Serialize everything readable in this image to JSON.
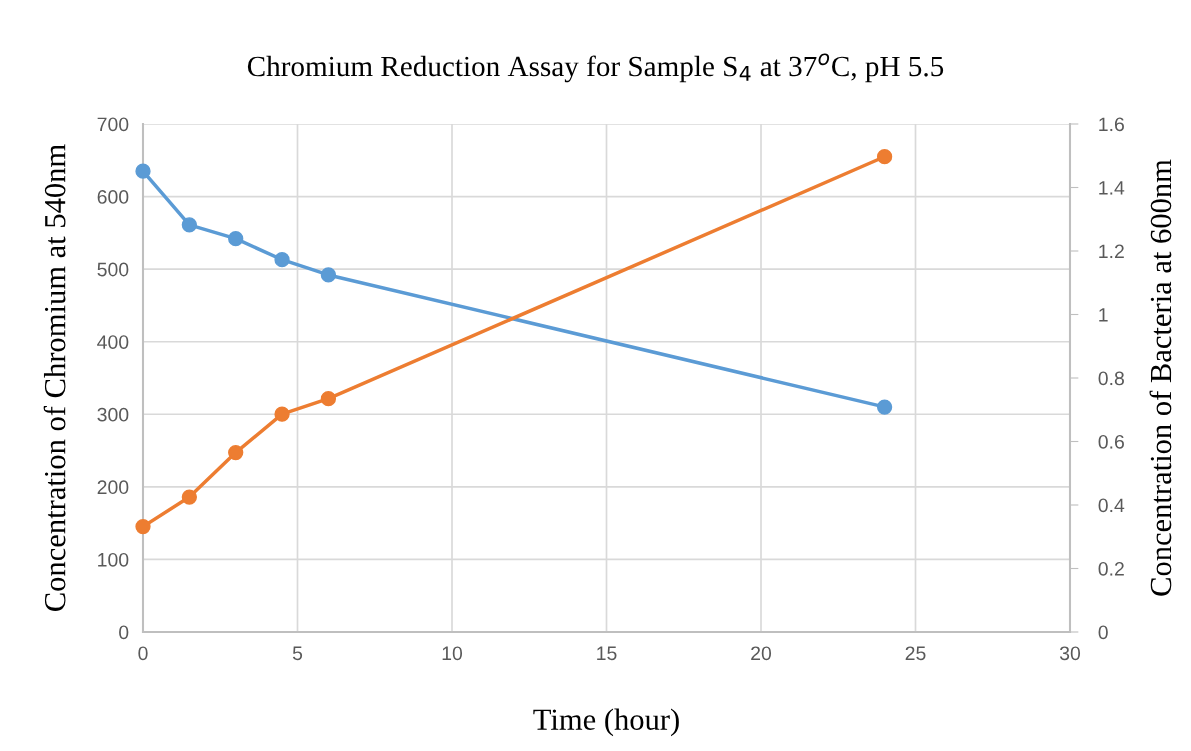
{
  "chart_data": {
    "type": "line",
    "title": "Chromium Reduction Assay for Sample S$_{4}$ at 37$^{o}$C, pH 5.5",
    "xlabel": "Time (hour)",
    "ylabel": "Concentration of Chromium at 540nm",
    "y2label": "Concentration of Bacteria at 600nm",
    "x": [
      0,
      1.5,
      3,
      4.5,
      6,
      24
    ],
    "series": [
      {
        "color": "#5b9bd5",
        "values": [
          635,
          561,
          542,
          513,
          492,
          310
        ]
      },
      {
        "color": "#ed7d31",
        "axis": "y2",
        "values": [
          0.332,
          0.425,
          0.565,
          0.686,
          0.735,
          1.497
        ]
      }
    ],
    "xlim": [
      0,
      30
    ],
    "xticks": [
      0,
      5,
      10,
      15,
      20,
      25,
      30
    ],
    "ylim": [
      0,
      700
    ],
    "yticks": [
      0,
      100,
      200,
      300,
      400,
      500,
      600,
      700
    ],
    "y2lim": [
      0,
      1.6
    ],
    "y2ticks": [
      {
        "value": 0,
        "label": "0"
      },
      {
        "value": 0.2,
        "label": "0.2"
      },
      {
        "value": 0.4,
        "label": "0.4"
      },
      {
        "value": 0.6,
        "label": "0.6"
      },
      {
        "value": 0.8,
        "label": "0.8"
      },
      {
        "value": 1,
        "label": "1"
      },
      {
        "value": 1.2,
        "label": "1.2"
      },
      {
        "value": 1.4,
        "label": "1.4"
      },
      {
        "value": 1.6,
        "label": "1.6"
      }
    ],
    "grid": true,
    "marker": "circle",
    "line_style": "solid",
    "legend": false
  }
}
